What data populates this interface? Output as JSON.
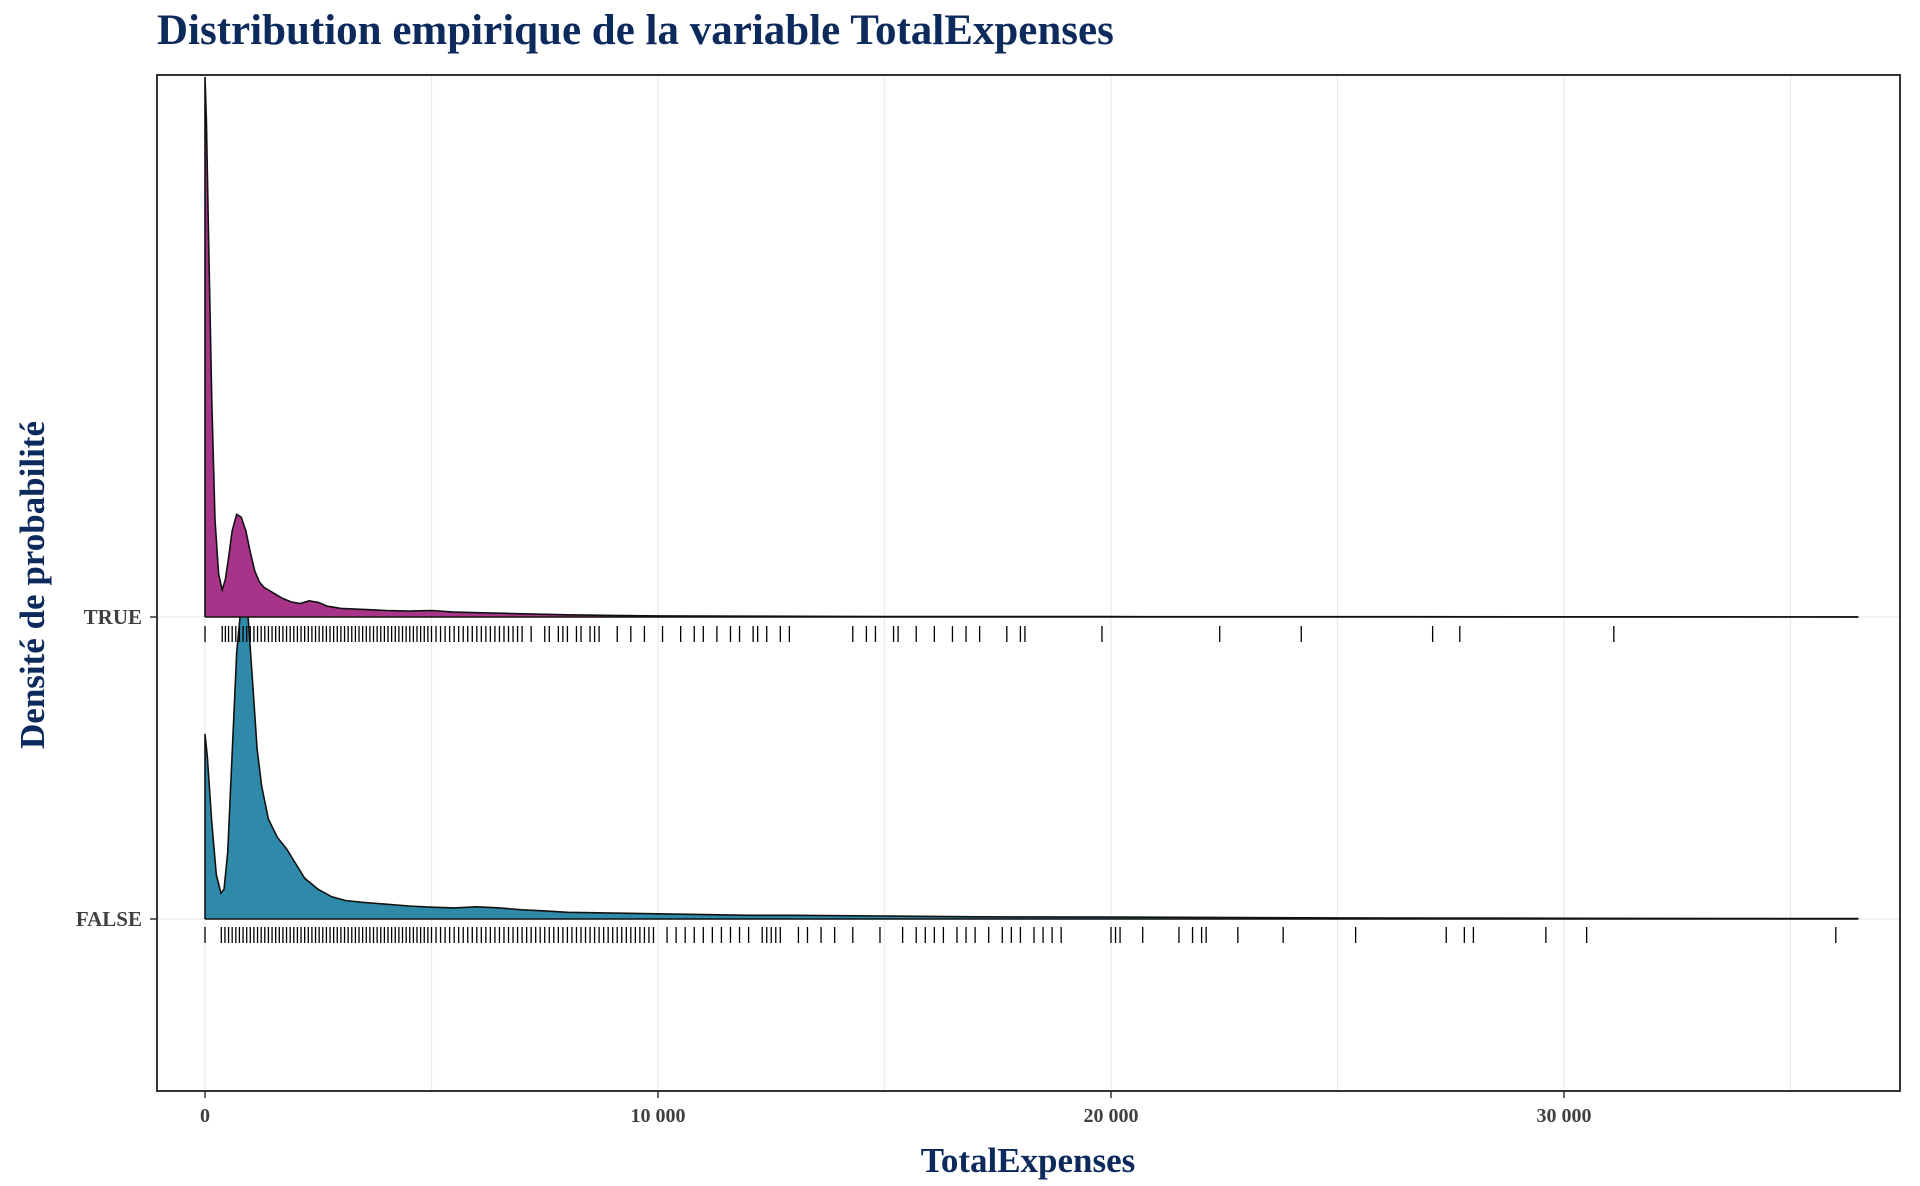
{
  "chart_data": {
    "type": "ridgeline-density",
    "title": "Distribution empirique de la variable TotalExpenses",
    "xlabel": "TotalExpenses",
    "ylabel": "Densité de probabilité",
    "xlim": [
      -1000,
      37000
    ],
    "x_ticks": [
      {
        "value": 0,
        "label": "0"
      },
      {
        "value": 10000,
        "label": "10 000"
      },
      {
        "value": 20000,
        "label": "20 000"
      },
      {
        "value": 30000,
        "label": "30 000"
      }
    ],
    "grid": true,
    "series": [
      {
        "name": "TRUE",
        "color": "#a8348a",
        "density_x": [
          0,
          30,
          80,
          150,
          220,
          300,
          380,
          450,
          520,
          600,
          700,
          800,
          900,
          1000,
          1100,
          1200,
          1300,
          1400,
          1500,
          1700,
          1900,
          2100,
          2300,
          2500,
          2700,
          3000,
          3500,
          4000,
          4500,
          5000,
          5500,
          6000,
          6500,
          7000,
          8000,
          9000,
          10000,
          12000,
          15000,
          20000,
          25000,
          30000,
          36500
        ],
        "density_y": [
          1.0,
          0.92,
          0.7,
          0.4,
          0.18,
          0.08,
          0.05,
          0.07,
          0.11,
          0.16,
          0.19,
          0.185,
          0.16,
          0.12,
          0.085,
          0.065,
          0.055,
          0.05,
          0.045,
          0.035,
          0.028,
          0.025,
          0.03,
          0.027,
          0.02,
          0.016,
          0.014,
          0.012,
          0.011,
          0.012,
          0.009,
          0.008,
          0.007,
          0.006,
          0.004,
          0.003,
          0.002,
          0.0015,
          0.001,
          0.0008,
          0.0006,
          0.0004,
          0.0002
        ]
      },
      {
        "name": "FALSE",
        "color": "#2e8aa8",
        "density_x": [
          0,
          50,
          150,
          250,
          350,
          420,
          500,
          600,
          700,
          800,
          880,
          950,
          1050,
          1150,
          1250,
          1400,
          1600,
          1800,
          2000,
          2200,
          2500,
          2800,
          3100,
          3500,
          4000,
          4500,
          5000,
          5500,
          6000,
          6500,
          7000,
          7500,
          8000,
          9000,
          10000,
          11000,
          12000,
          13000,
          15000,
          17000,
          20000,
          25000,
          30000,
          36500
        ],
        "density_y": [
          0.5,
          0.44,
          0.26,
          0.12,
          0.07,
          0.08,
          0.18,
          0.45,
          0.72,
          0.85,
          0.87,
          0.82,
          0.64,
          0.46,
          0.36,
          0.27,
          0.22,
          0.19,
          0.15,
          0.11,
          0.08,
          0.06,
          0.05,
          0.045,
          0.04,
          0.035,
          0.032,
          0.03,
          0.033,
          0.03,
          0.025,
          0.022,
          0.018,
          0.016,
          0.014,
          0.012,
          0.01,
          0.01,
          0.008,
          0.006,
          0.005,
          0.003,
          0.002,
          0.001
        ]
      }
    ],
    "rug": {
      "TRUE": [
        0,
        380,
        450,
        520,
        600,
        680,
        760,
        840,
        920,
        1000,
        1080,
        1160,
        1240,
        1320,
        1400,
        1480,
        1560,
        1640,
        1720,
        1800,
        1880,
        1960,
        2040,
        2120,
        2200,
        2280,
        2360,
        2440,
        2520,
        2600,
        2680,
        2760,
        2840,
        2920,
        3000,
        3080,
        3160,
        3240,
        3320,
        3400,
        3480,
        3560,
        3640,
        3720,
        3800,
        3880,
        3960,
        4040,
        4120,
        4200,
        4280,
        4360,
        4440,
        4520,
        4600,
        4680,
        4760,
        4840,
        4920,
        5000,
        5100,
        5200,
        5300,
        5400,
        5500,
        5600,
        5700,
        5800,
        5900,
        6000,
        6100,
        6200,
        6300,
        6400,
        6500,
        6600,
        6700,
        6800,
        6900,
        7000,
        7200,
        7500,
        7600,
        7800,
        7900,
        8000,
        8200,
        8300,
        8500,
        8600,
        8700,
        9100,
        9400,
        9700,
        10100,
        10500,
        10800,
        11000,
        11300,
        11600,
        11800,
        12100,
        12200,
        12400,
        12700,
        12900,
        14300,
        14600,
        14800,
        15200,
        15300,
        15700,
        16100,
        16500,
        16800,
        17100,
        17700,
        18000,
        18100,
        19800,
        22400,
        24200,
        27100,
        27700,
        31100
      ],
      "FALSE": [
        0,
        360,
        440,
        520,
        600,
        680,
        760,
        840,
        920,
        1000,
        1080,
        1160,
        1240,
        1320,
        1400,
        1480,
        1560,
        1640,
        1720,
        1800,
        1880,
        1960,
        2040,
        2120,
        2200,
        2280,
        2360,
        2440,
        2520,
        2600,
        2680,
        2760,
        2840,
        2920,
        3000,
        3080,
        3160,
        3240,
        3320,
        3400,
        3480,
        3560,
        3640,
        3720,
        3800,
        3880,
        3960,
        4040,
        4120,
        4200,
        4280,
        4360,
        4440,
        4520,
        4600,
        4680,
        4760,
        4840,
        4920,
        5000,
        5100,
        5200,
        5300,
        5400,
        5500,
        5600,
        5700,
        5800,
        5900,
        6000,
        6100,
        6200,
        6300,
        6400,
        6500,
        6600,
        6700,
        6800,
        6900,
        7000,
        7100,
        7200,
        7300,
        7400,
        7500,
        7600,
        7700,
        7800,
        7900,
        8000,
        8100,
        8200,
        8300,
        8400,
        8500,
        8600,
        8700,
        8800,
        8900,
        9000,
        9100,
        9200,
        9300,
        9400,
        9500,
        9600,
        9700,
        9800,
        9900,
        10200,
        10400,
        10600,
        10800,
        11000,
        11200,
        11400,
        11600,
        11800,
        12000,
        12300,
        12400,
        12500,
        12600,
        12700,
        13100,
        13300,
        13600,
        13900,
        14300,
        14900,
        15400,
        15700,
        15900,
        16100,
        16300,
        16600,
        16800,
        17000,
        17300,
        17600,
        17800,
        18000,
        18300,
        18500,
        18700,
        18900,
        20000,
        20100,
        20200,
        20700,
        21500,
        21800,
        22000,
        22100,
        22800,
        23800,
        25400,
        27400,
        27800,
        28000,
        29600,
        30500,
        36000
      ]
    }
  }
}
